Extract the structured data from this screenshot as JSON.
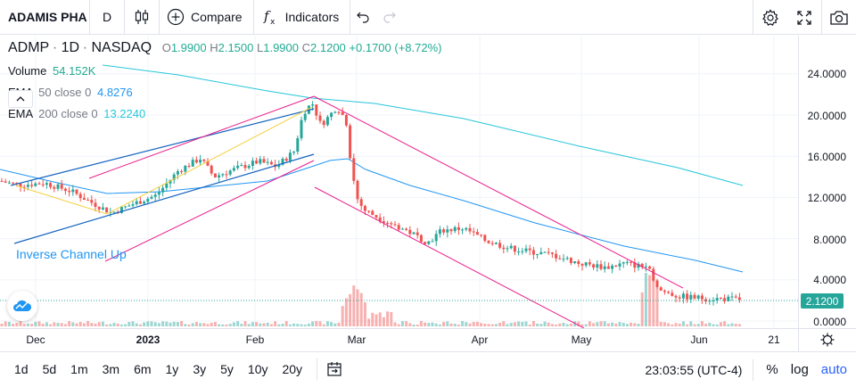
{
  "toolbar": {
    "symbol": "ADAMIS PHA",
    "interval": "D",
    "compare_label": "Compare",
    "indicators_label": "Indicators"
  },
  "legend": {
    "symbol": "ADMP",
    "interval": "1D",
    "exchange": "NASDAQ",
    "open_key": "O",
    "open": "1.9900",
    "high_key": "H",
    "high": "2.1500",
    "low_key": "L",
    "low": "1.9900",
    "close_key": "C",
    "close": "2.1200",
    "change": "+0.1700 (+8.72%)",
    "volume_label": "Volume",
    "volume_value": "54.152K",
    "ema50_label": "EMA",
    "ema50_params": "50 close 0",
    "ema50_value": "4.8276",
    "ema200_label": "EMA",
    "ema200_params": "200 close 0",
    "ema200_value": "13.2240"
  },
  "pattern_label": "Inverse Channel Up",
  "price_axis": {
    "ticks": [
      "24.0000",
      "20.0000",
      "16.0000",
      "12.0000",
      "8.0000",
      "4.0000",
      "0.0000"
    ],
    "current_price": "2.1200"
  },
  "time_axis": {
    "ticks": [
      {
        "label": "Dec",
        "bold": false
      },
      {
        "label": "2023",
        "bold": true
      },
      {
        "label": "Feb",
        "bold": false
      },
      {
        "label": "Mar",
        "bold": false
      },
      {
        "label": "Apr",
        "bold": false
      },
      {
        "label": "May",
        "bold": false
      },
      {
        "label": "Jun",
        "bold": false
      },
      {
        "label": "21",
        "bold": false
      }
    ]
  },
  "bottom_bar": {
    "ranges": [
      "1d",
      "5d",
      "1m",
      "3m",
      "6m",
      "1y",
      "3y",
      "5y",
      "10y",
      "20y"
    ],
    "clock": "23:03:55 (UTC-4)",
    "percent_label": "%",
    "log_label": "log",
    "auto_label": "auto"
  },
  "colors": {
    "up": "#26a69a",
    "down": "#ef5350",
    "ema50": "#2196f3",
    "ema200": "#26c6da",
    "channel_pink": "#e91e8c",
    "channel_blue": "#1565c0",
    "triangle_yellow": "#f4d03f",
    "accent": "#2962ff"
  }
}
